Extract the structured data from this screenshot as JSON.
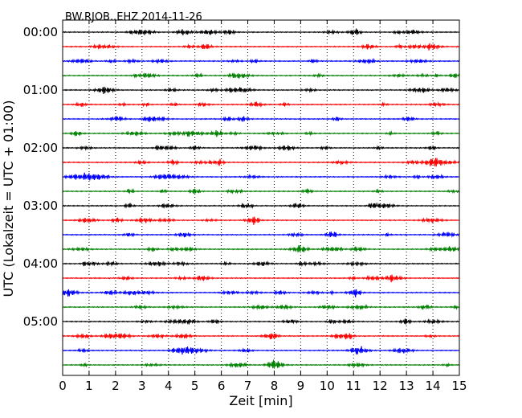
{
  "chart_data": {
    "type": "line",
    "title": "BW.RJOB..EHZ 2014-11-26",
    "xlabel": "Zeit  [min]",
    "ylabel": "UTC (Lokalzeit = UTC + 01:00)",
    "xlim": [
      0,
      15
    ],
    "x_ticks": [
      "0",
      "1",
      "2",
      "3",
      "4",
      "5",
      "6",
      "7",
      "8",
      "9",
      "10",
      "11",
      "12",
      "13",
      "14",
      "15"
    ],
    "y_tick_labels": [
      "00:00",
      "01:00",
      "02:00",
      "03:00",
      "04:00",
      "05:00"
    ],
    "traces_per_hour": 4,
    "minutes_per_trace": 15,
    "hours": 6,
    "trace_colors": [
      "#000000",
      "#ff0000",
      "#0000ff",
      "#008000"
    ],
    "grid_vertical_dotted": true,
    "series": [
      {
        "start": "00:00",
        "color": "#000000"
      },
      {
        "start": "00:15",
        "color": "#ff0000"
      },
      {
        "start": "00:30",
        "color": "#0000ff"
      },
      {
        "start": "00:45",
        "color": "#008000"
      },
      {
        "start": "01:00",
        "color": "#000000"
      },
      {
        "start": "01:15",
        "color": "#ff0000"
      },
      {
        "start": "01:30",
        "color": "#0000ff"
      },
      {
        "start": "01:45",
        "color": "#008000"
      },
      {
        "start": "02:00",
        "color": "#000000"
      },
      {
        "start": "02:15",
        "color": "#ff0000"
      },
      {
        "start": "02:30",
        "color": "#0000ff"
      },
      {
        "start": "02:45",
        "color": "#008000"
      },
      {
        "start": "03:00",
        "color": "#000000"
      },
      {
        "start": "03:15",
        "color": "#ff0000"
      },
      {
        "start": "03:30",
        "color": "#0000ff"
      },
      {
        "start": "03:45",
        "color": "#008000"
      },
      {
        "start": "04:00",
        "color": "#000000"
      },
      {
        "start": "04:15",
        "color": "#ff0000"
      },
      {
        "start": "04:30",
        "color": "#0000ff"
      },
      {
        "start": "04:45",
        "color": "#008000"
      },
      {
        "start": "05:00",
        "color": "#000000"
      },
      {
        "start": "05:15",
        "color": "#ff0000"
      },
      {
        "start": "05:30",
        "color": "#0000ff"
      },
      {
        "start": "05:45",
        "color": "#008000"
      }
    ]
  }
}
